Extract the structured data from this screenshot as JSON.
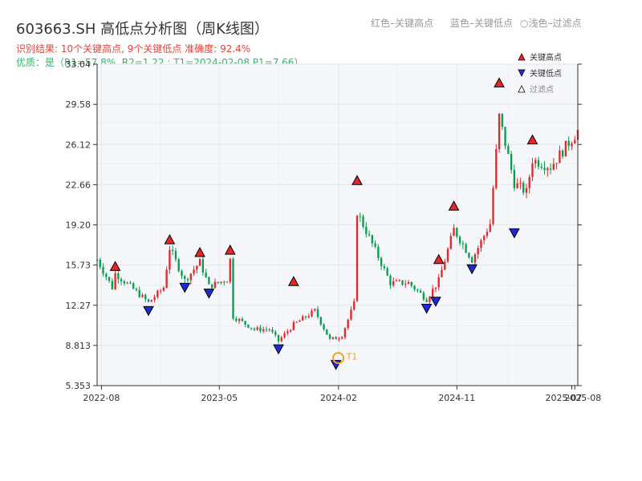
{
  "header": {
    "title": "603663.SH 高低点分析图（周K线图）",
    "legend_red": "红色–关键高点",
    "legend_blue": "蓝色–关键低点",
    "legend_filtered": "○浅色–过滤点",
    "result_line": "识别结果: 10个关键高点, 9个关键低点   准确度: 92.4%",
    "quality_line": "优质：是（R1=57.8%, R2=1.22 ; T1=2024-02-08 P1=7.66）"
  },
  "colors": {
    "up": "#e8262a",
    "down": "#079e4e",
    "high_marker": "#e8262a",
    "low_marker": "#1f2bd9",
    "t1": "#f5a21d",
    "plot_bg": "#f5f7fa"
  },
  "chart_data": {
    "type": "candlestick",
    "x_tick_labels": [
      "2022-08",
      "2023-05",
      "2024-02",
      "2024-11",
      "2025-07",
      "2025-08"
    ],
    "y_tick_labels": [
      "5.353",
      "8.813",
      "12.27",
      "15.73",
      "19.20",
      "22.66",
      "26.12",
      "29.58",
      "33.04"
    ],
    "ylim": [
      5.353,
      33.04
    ],
    "xlim": [
      "2022-07-22",
      "2025-08-08"
    ],
    "legend": {
      "items": [
        {
          "label": "关键高点",
          "marker": "up-triangle-red"
        },
        {
          "label": "关键低点",
          "marker": "down-triangle-blue"
        },
        {
          "label": "过滤点",
          "marker": "up-triangle-outline"
        }
      ],
      "position": "top-right"
    },
    "key_highs": [
      {
        "date": "2022-09-02",
        "price": 15.2
      },
      {
        "date": "2023-01-06",
        "price": 17.5
      },
      {
        "date": "2023-03-17",
        "price": 16.4
      },
      {
        "date": "2023-05-26",
        "price": 16.6
      },
      {
        "date": "2023-10-20",
        "price": 13.9
      },
      {
        "date": "2024-03-15",
        "price": 22.6
      },
      {
        "date": "2024-09-20",
        "price": 15.8
      },
      {
        "date": "2024-10-25",
        "price": 20.4
      },
      {
        "date": "2025-02-07",
        "price": 31.0
      },
      {
        "date": "2025-04-25",
        "price": 26.1
      }
    ],
    "key_lows": [
      {
        "date": "2022-11-18",
        "price": 12.3
      },
      {
        "date": "2023-02-10",
        "price": 14.3
      },
      {
        "date": "2023-04-07",
        "price": 13.8
      },
      {
        "date": "2023-09-15",
        "price": 9.0
      },
      {
        "date": "2024-01-26",
        "price": 7.66
      },
      {
        "date": "2024-08-23",
        "price": 12.5
      },
      {
        "date": "2024-09-13",
        "price": 13.1
      },
      {
        "date": "2024-12-06",
        "price": 15.9
      },
      {
        "date": "2025-03-14",
        "price": 19.0
      }
    ],
    "t1": {
      "label": "T1",
      "date": "2024-02-08",
      "price": 7.66
    },
    "anchors": [
      [
        "2022-07-22",
        16.2
      ],
      [
        "2022-08-26",
        13.8
      ],
      [
        "2022-09-02",
        15.0
      ],
      [
        "2022-10-07",
        13.9
      ],
      [
        "2022-11-18",
        12.5
      ],
      [
        "2022-12-23",
        13.8
      ],
      [
        "2023-01-06",
        17.2
      ],
      [
        "2023-02-10",
        14.4
      ],
      [
        "2023-03-17",
        16.0
      ],
      [
        "2023-04-07",
        13.9
      ],
      [
        "2023-05-19",
        14.5
      ],
      [
        "2023-05-26",
        16.2
      ],
      [
        "2023-06-02",
        11.3
      ],
      [
        "2023-07-21",
        10.2
      ],
      [
        "2023-08-25",
        10.2
      ],
      [
        "2023-09-15",
        9.2
      ],
      [
        "2023-10-20",
        10.6
      ],
      [
        "2023-12-08",
        11.8
      ],
      [
        "2024-01-12",
        9.3
      ],
      [
        "2024-02-08",
        9.6
      ],
      [
        "2024-03-08",
        12.4
      ],
      [
        "2024-03-15",
        20.3
      ],
      [
        "2024-04-26",
        17.0
      ],
      [
        "2024-05-31",
        14.2
      ],
      [
        "2024-07-12",
        14.2
      ],
      [
        "2024-08-23",
        12.8
      ],
      [
        "2024-09-20",
        14.4
      ],
      [
        "2024-10-25",
        18.8
      ],
      [
        "2024-12-06",
        16.2
      ],
      [
        "2025-01-17",
        19.3
      ],
      [
        "2025-02-07",
        28.5
      ],
      [
        "2025-03-14",
        22.8
      ],
      [
        "2025-04-11",
        22.0
      ],
      [
        "2025-04-25",
        24.8
      ],
      [
        "2025-06-06",
        24.2
      ],
      [
        "2025-08-08",
        27.3
      ]
    ]
  }
}
